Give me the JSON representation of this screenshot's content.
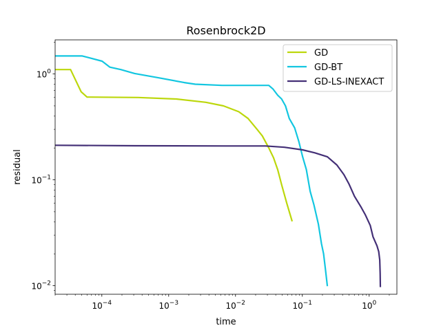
{
  "chart_data": {
    "type": "line",
    "title": "Rosenbrock2D",
    "xlabel": "time",
    "ylabel": "residual",
    "x_scale": "log",
    "y_scale": "log",
    "xlim": [
      2e-05,
      2.6
    ],
    "ylim": [
      0.0083,
      2.1
    ],
    "x_ticks": [
      {
        "value": 0.0001,
        "base": "10",
        "exp": "−4"
      },
      {
        "value": 0.001,
        "base": "10",
        "exp": "−3"
      },
      {
        "value": 0.01,
        "base": "10",
        "exp": "−2"
      },
      {
        "value": 0.1,
        "base": "10",
        "exp": "−1"
      },
      {
        "value": 1,
        "base": "10",
        "exp": "0"
      }
    ],
    "y_ticks": [
      {
        "value": 0.01,
        "base": "10",
        "exp": "−2"
      },
      {
        "value": 0.1,
        "base": "10",
        "exp": "−1"
      },
      {
        "value": 1,
        "base": "10",
        "exp": "0"
      }
    ],
    "grid": false,
    "legend_position": "top-right",
    "series": [
      {
        "name": "GD",
        "color": "#bcd70b",
        "points": [
          [
            2e-05,
            1.1
          ],
          [
            3.4e-05,
            1.1
          ],
          [
            4.9e-05,
            0.68
          ],
          [
            6e-05,
            0.605
          ],
          [
            0.00035,
            0.6
          ],
          [
            0.0013,
            0.58
          ],
          [
            0.0036,
            0.54
          ],
          [
            0.0066,
            0.5
          ],
          [
            0.0112,
            0.44
          ],
          [
            0.0154,
            0.38
          ],
          [
            0.021,
            0.3
          ],
          [
            0.0252,
            0.26
          ],
          [
            0.0315,
            0.2
          ],
          [
            0.037,
            0.162
          ],
          [
            0.0428,
            0.125
          ],
          [
            0.049,
            0.09
          ],
          [
            0.0585,
            0.06
          ],
          [
            0.0704,
            0.0405
          ]
        ]
      },
      {
        "name": "GD-BT",
        "color": "#12c6e0",
        "points": [
          [
            2e-05,
            1.48
          ],
          [
            5.1e-05,
            1.48
          ],
          [
            0.000101,
            1.32
          ],
          [
            0.000132,
            1.16
          ],
          [
            0.000192,
            1.1
          ],
          [
            0.00031,
            1.01
          ],
          [
            0.00071,
            0.92
          ],
          [
            0.00171,
            0.83
          ],
          [
            0.0025,
            0.8
          ],
          [
            0.0063,
            0.78
          ],
          [
            0.0154,
            0.78
          ],
          [
            0.0315,
            0.78
          ],
          [
            0.0365,
            0.72
          ],
          [
            0.0428,
            0.63
          ],
          [
            0.049,
            0.58
          ],
          [
            0.056,
            0.5
          ],
          [
            0.0638,
            0.38
          ],
          [
            0.0768,
            0.31
          ],
          [
            0.0886,
            0.23
          ],
          [
            0.101,
            0.165
          ],
          [
            0.115,
            0.125
          ],
          [
            0.131,
            0.078
          ],
          [
            0.149,
            0.058
          ],
          [
            0.174,
            0.038
          ],
          [
            0.193,
            0.025
          ],
          [
            0.208,
            0.02
          ],
          [
            0.22,
            0.0148
          ],
          [
            0.237,
            0.0099
          ]
        ]
      },
      {
        "name": "GD-LS-INEXACT",
        "color": "#432f76",
        "points": [
          [
            2e-05,
            0.212
          ],
          [
            0.00031,
            0.21
          ],
          [
            0.0071,
            0.209
          ],
          [
            0.028,
            0.209
          ],
          [
            0.054,
            0.203
          ],
          [
            0.101,
            0.192
          ],
          [
            0.154,
            0.18
          ],
          [
            0.237,
            0.165
          ],
          [
            0.329,
            0.138
          ],
          [
            0.419,
            0.112
          ],
          [
            0.501,
            0.091
          ],
          [
            0.603,
            0.07
          ],
          [
            0.76,
            0.055
          ],
          [
            0.872,
            0.047
          ],
          [
            1.04,
            0.037
          ],
          [
            1.14,
            0.029
          ],
          [
            1.31,
            0.0238
          ],
          [
            1.39,
            0.021
          ],
          [
            1.44,
            0.0175
          ],
          [
            1.46,
            0.0131
          ],
          [
            1.47,
            0.0097
          ]
        ]
      }
    ]
  }
}
